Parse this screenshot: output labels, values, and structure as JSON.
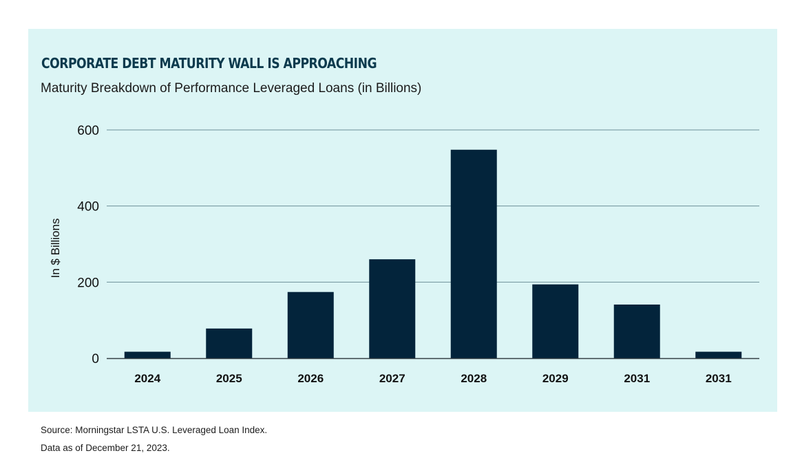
{
  "chart_data": {
    "type": "bar",
    "title": "CORPORATE DEBT MATURITY WALL IS APPROACHING",
    "subtitle": "Maturity Breakdown of Performance Leveraged Loans (in Billions)",
    "xlabel": "",
    "ylabel": "In $ Billions",
    "categories": [
      "2024",
      "2025",
      "2026",
      "2027",
      "2028",
      "2029",
      "2031",
      "2031"
    ],
    "values": [
      17,
      78,
      174,
      260,
      548,
      194,
      141,
      17
    ],
    "ylim": [
      0,
      600
    ],
    "yticks": [
      "0",
      "200",
      "400",
      "600"
    ],
    "grid": true,
    "legend": "none",
    "bar_color": "#03243b",
    "gridline_color": "#6c8f98",
    "background_color": "#dcf5f5"
  },
  "footer": {
    "source": "Source: Morningstar LSTA U.S. Leveraged Loan Index.",
    "date": "Data as of December 21, 2023."
  }
}
